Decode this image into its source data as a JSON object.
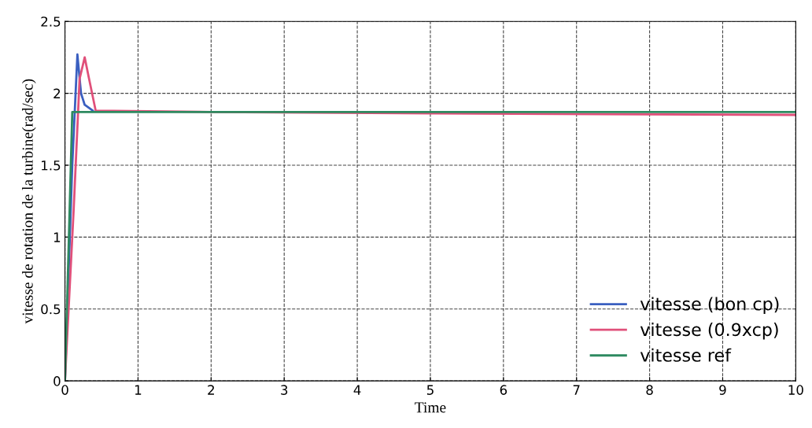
{
  "chart_data": {
    "type": "line",
    "xlabel": "Time",
    "ylabel": "vitesse de rotation de la turbine(rad/sec)",
    "xlim": [
      0,
      10
    ],
    "ylim": [
      0,
      2.5
    ],
    "xticks": [
      0,
      1,
      2,
      3,
      4,
      5,
      6,
      7,
      8,
      9,
      10
    ],
    "yticks": [
      0,
      0.5,
      1,
      1.5,
      2,
      2.5
    ],
    "grid": true,
    "legend": "bottom right",
    "line_style": "solid",
    "series": [
      {
        "name": "vitesse (bon cp)",
        "color": "#3a5fc0",
        "x": [
          0,
          0.1,
          0.17,
          0.22,
          0.27,
          0.38
        ],
        "values": [
          0,
          1.5,
          2.27,
          2.0,
          1.92,
          1.88
        ]
      },
      {
        "name": "vitesse (0.9xcp)",
        "color": "#e0507a",
        "x": [
          0,
          0.12,
          0.2,
          0.27,
          0.33,
          0.42,
          2,
          5,
          10
        ],
        "values": [
          0,
          1.2,
          2.1,
          2.25,
          2.1,
          1.88,
          1.87,
          1.86,
          1.85
        ]
      },
      {
        "name": "vitesse ref",
        "color": "#2e8a60",
        "x": [
          0,
          0.1,
          2,
          5,
          10
        ],
        "values": [
          0,
          1.87,
          1.87,
          1.87,
          1.87
        ]
      }
    ]
  }
}
